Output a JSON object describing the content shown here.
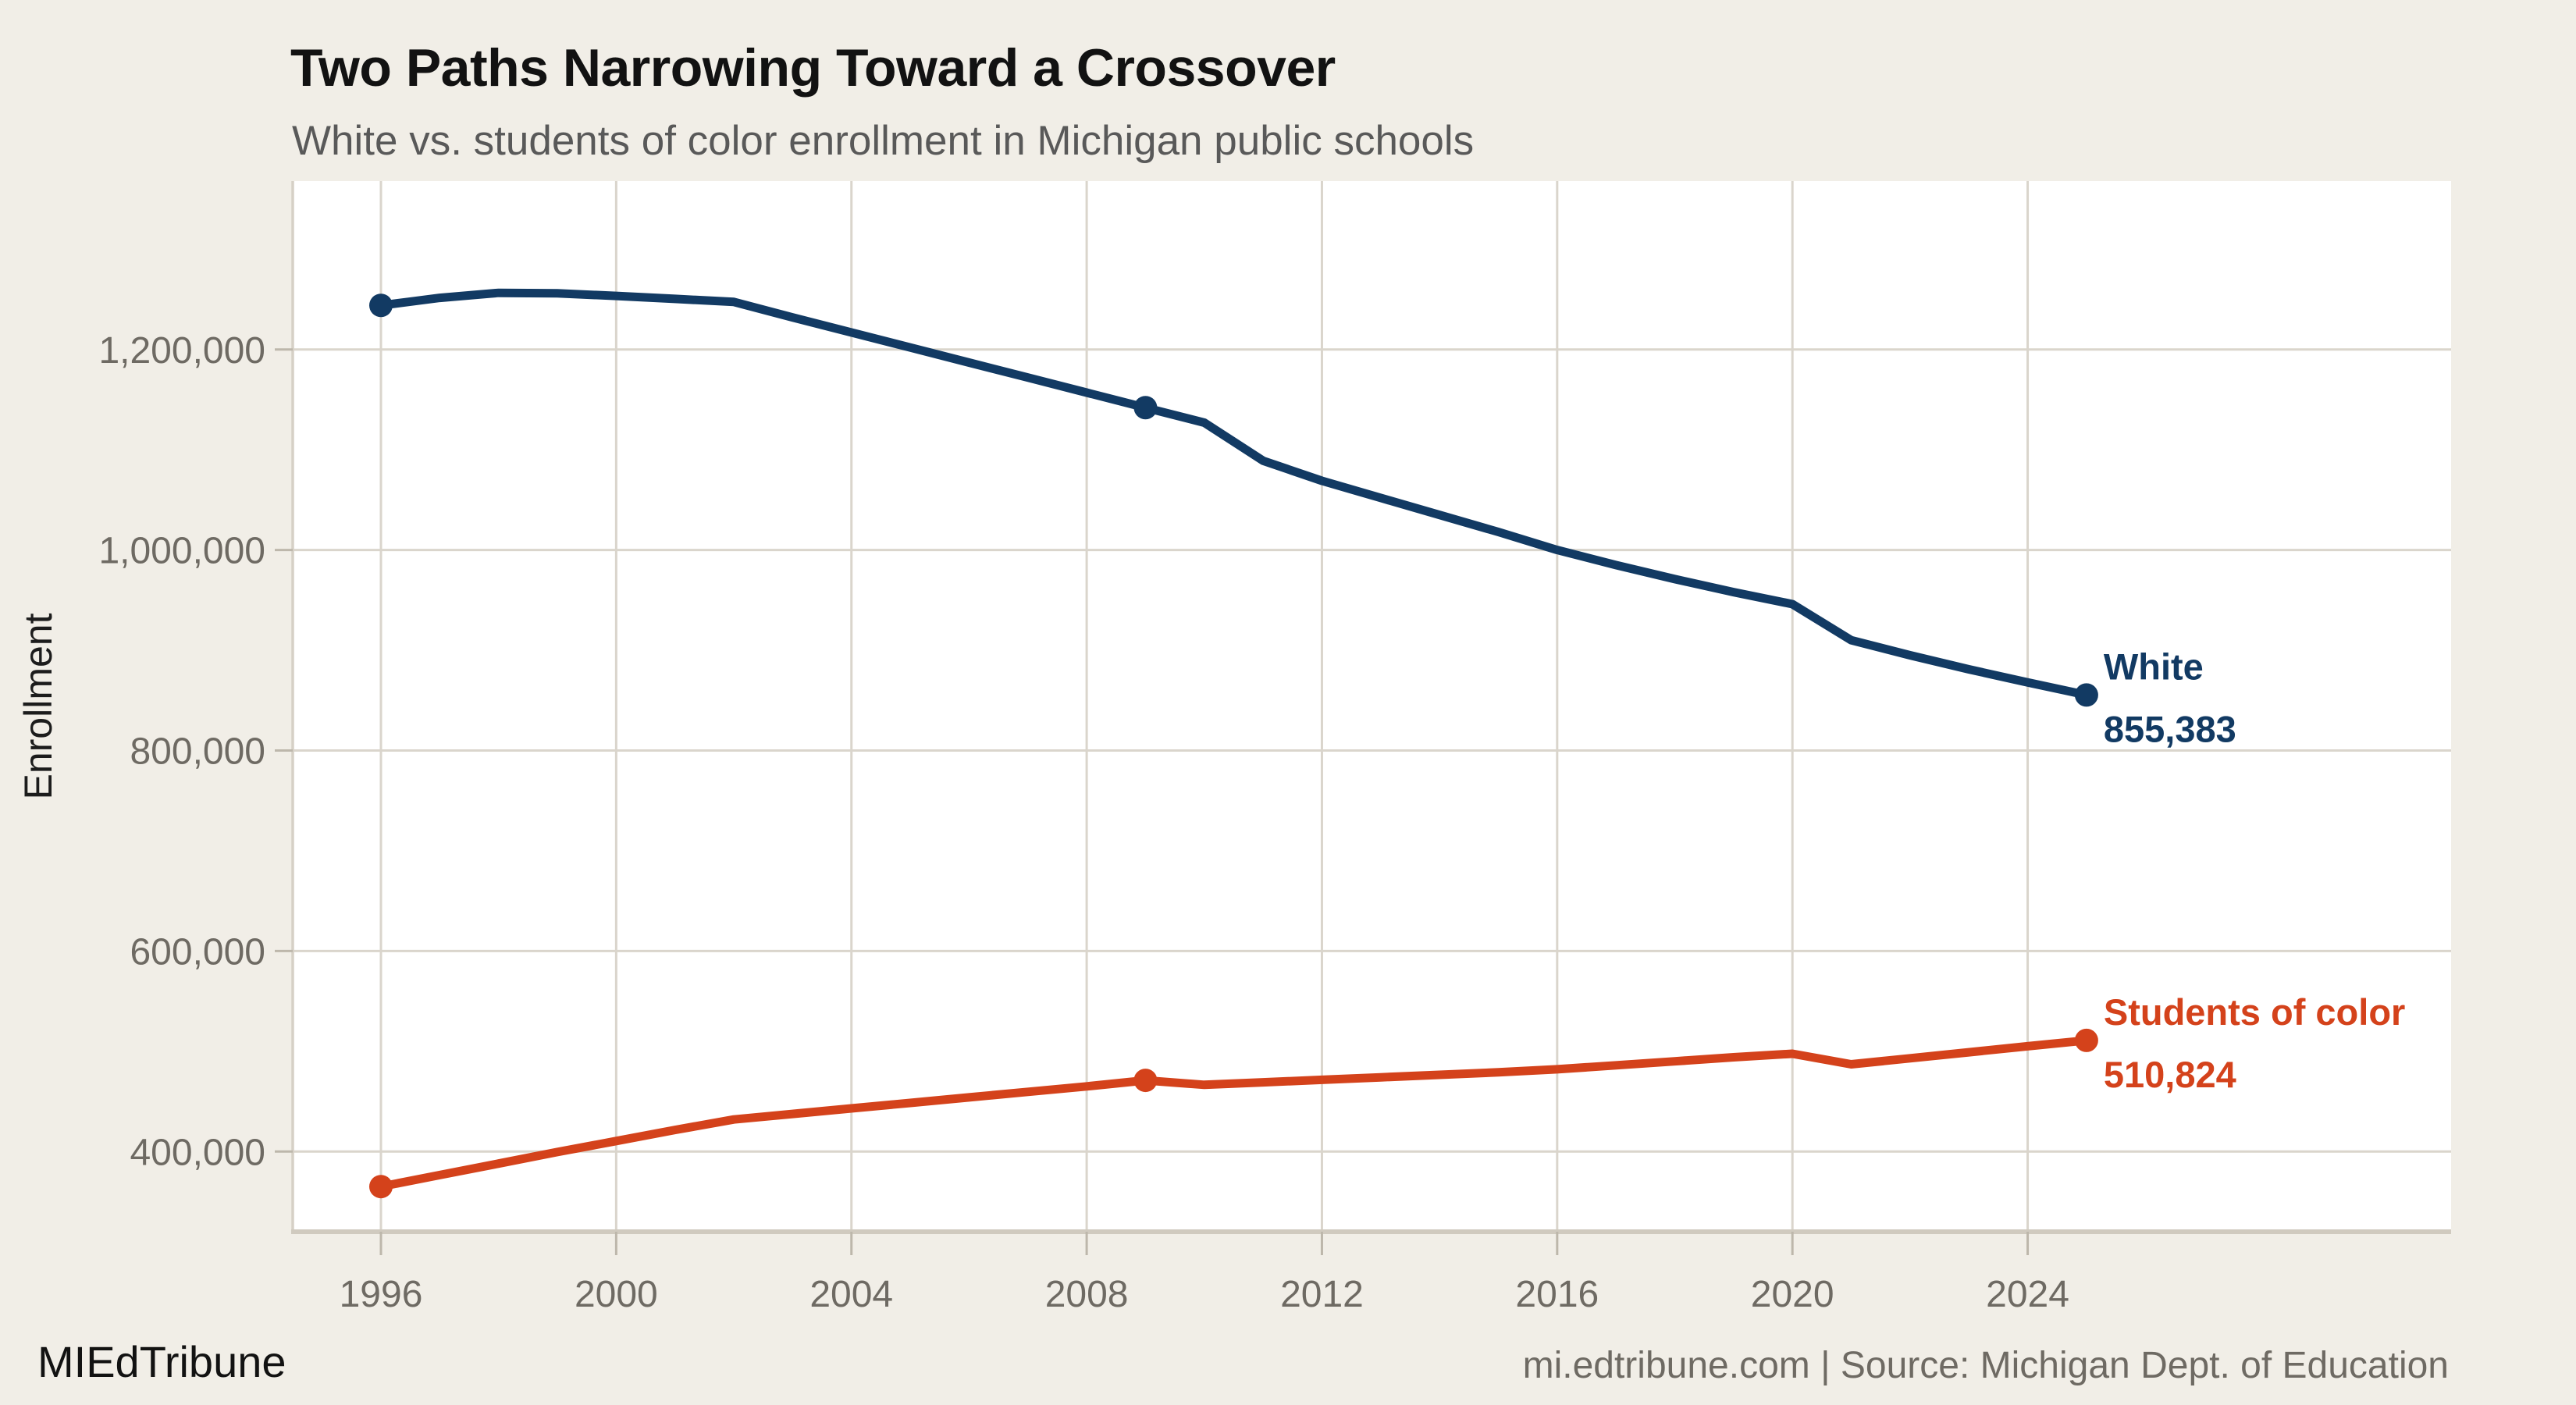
{
  "header": {
    "title": "Two Paths Narrowing Toward a Crossover",
    "subtitle": "White vs. students of color enrollment in Michigan public schools"
  },
  "footer": {
    "brand": "MIEdTribune",
    "source": "mi.edtribune.com | Source: Michigan Dept. of Education"
  },
  "colors": {
    "page_bg": "#f1eee7",
    "plot_bg": "#ffffff",
    "grid": "#dad5cc",
    "spine": "#d6d0c6",
    "axis_line": "#d0cabf",
    "tick": "#bdb7ab",
    "tick_text": "#6e6a63",
    "axis_title": "#1c1c1c",
    "white_series": "#123a63",
    "color_series": "#d4421b"
  },
  "chart_data": {
    "type": "line",
    "title": "Two Paths Narrowing Toward a Crossover",
    "subtitle": "White vs. students of color enrollment in Michigan public schools",
    "xlabel": "",
    "ylabel": "Enrollment",
    "grid": true,
    "legend_position": "end-of-line-labels",
    "x_domain": [
      1994.5,
      2031.2
    ],
    "y_domain": [
      320000,
      1368000
    ],
    "x": [
      1996,
      1997,
      1998,
      1999,
      2000,
      2001,
      2002,
      2003,
      2004,
      2005,
      2006,
      2007,
      2008,
      2009,
      2010,
      2011,
      2012,
      2013,
      2014,
      2015,
      2016,
      2017,
      2018,
      2019,
      2020,
      2021,
      2022,
      2023,
      2024,
      2025
    ],
    "marker_years": [
      1996,
      2009,
      2025
    ],
    "x_ticks": [
      {
        "value": 1996,
        "label": "1996"
      },
      {
        "value": 2000,
        "label": "2000"
      },
      {
        "value": 2004,
        "label": "2004"
      },
      {
        "value": 2008,
        "label": "2008"
      },
      {
        "value": 2012,
        "label": "2012"
      },
      {
        "value": 2016,
        "label": "2016"
      },
      {
        "value": 2020,
        "label": "2020"
      },
      {
        "value": 2024,
        "label": "2024"
      }
    ],
    "y_ticks": [
      {
        "value": 400000,
        "label": "400,000"
      },
      {
        "value": 600000,
        "label": "600,000"
      },
      {
        "value": 800000,
        "label": "800,000"
      },
      {
        "value": 1000000,
        "label": "1,000,000"
      },
      {
        "value": 1200000,
        "label": "1,200,000"
      }
    ],
    "series": [
      {
        "name": "White",
        "color": "#123a63",
        "end_label": "White",
        "end_value_label": "855,383",
        "values": [
          1244000,
          1251500,
          1256500,
          1256000,
          1253500,
          1250500,
          1247500,
          1232000,
          1217000,
          1202000,
          1187000,
          1172000,
          1157000,
          1142000,
          1127000,
          1089000,
          1069000,
          1052000,
          1035000,
          1018000,
          1000000,
          985000,
          971000,
          958000,
          946000,
          910000,
          895000,
          881000,
          868000,
          855383
        ]
      },
      {
        "name": "Students of color",
        "color": "#d4421b",
        "end_label": "Students of color",
        "end_value_label": "510,824",
        "values": [
          365000,
          376500,
          388000,
          399500,
          410500,
          421500,
          432000,
          437500,
          443000,
          448500,
          454000,
          459500,
          465000,
          471000,
          466500,
          469000,
          471500,
          474000,
          476500,
          479000,
          482000,
          486000,
          490000,
          494000,
          497500,
          487000,
          493000,
          499000,
          505000,
          510824
        ]
      }
    ]
  }
}
